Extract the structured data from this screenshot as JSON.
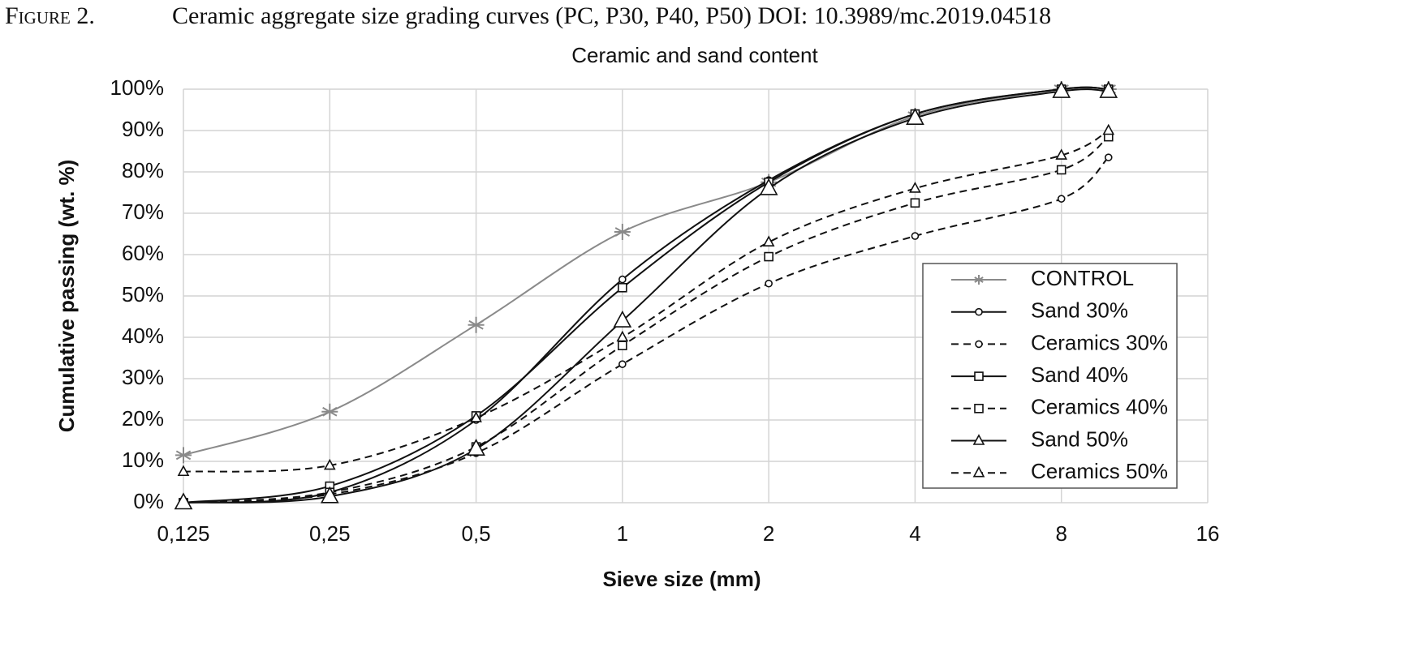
{
  "chart_data": {
    "type": "line",
    "figure_label": "Figure 2.",
    "caption": "Ceramic aggregate size grading curves (PC, P30, P40, P50) DOI: 10.3989/mc.2019.04518",
    "title": "Ceramic and sand content",
    "x_label": "Sieve size (mm)",
    "y_label": "Cumulative passing (wt. %)",
    "xscale": "log",
    "xlim": [
      0.125,
      16
    ],
    "xticks": [
      {
        "value": 0.125,
        "label": "0,125"
      },
      {
        "value": 0.25,
        "label": "0,25"
      },
      {
        "value": 0.5,
        "label": "0,5"
      },
      1,
      2,
      4,
      8,
      16
    ],
    "ylim": [
      0,
      100
    ],
    "yticks": [
      {
        "value": 0,
        "label": "0%"
      },
      {
        "value": 10,
        "label": "10%"
      },
      {
        "value": 20,
        "label": "20%"
      },
      {
        "value": 30,
        "label": "30%"
      },
      {
        "value": 40,
        "label": "40%"
      },
      {
        "value": 50,
        "label": "50%"
      },
      {
        "value": 60,
        "label": "60%"
      },
      {
        "value": 70,
        "label": "70%"
      },
      {
        "value": 80,
        "label": "80%"
      },
      {
        "value": 90,
        "label": "90%"
      },
      {
        "value": 100,
        "label": "100%"
      }
    ],
    "grid": true,
    "legend": "lower right",
    "x": [
      0.125,
      0.25,
      0.5,
      1,
      2,
      4,
      8,
      10
    ],
    "series": [
      {
        "name": "CONTROL",
        "color": "#8a8a8a",
        "dash": false,
        "marker": "asterisk",
        "marker_size": 10,
        "values": [
          11.5,
          22,
          43,
          65.5,
          77.5,
          93.5,
          100,
          100
        ]
      },
      {
        "name": "Sand 30%",
        "color": "#111111",
        "dash": false,
        "marker": "circle",
        "marker_size": 4,
        "values": [
          0,
          2.5,
          20,
          54,
          78,
          94,
          100,
          100
        ]
      },
      {
        "name": "Ceramics 30%",
        "color": "#111111",
        "dash": true,
        "marker": "circle",
        "marker_size": 4,
        "values": [
          0,
          2,
          12,
          33.5,
          53,
          64.5,
          73.5,
          83.5
        ]
      },
      {
        "name": "Sand 40%",
        "color": "#111111",
        "dash": false,
        "marker": "square",
        "marker_size": 5,
        "values": [
          0,
          4,
          21,
          52,
          77.5,
          94,
          100,
          100
        ]
      },
      {
        "name": "Ceramics 40%",
        "color": "#111111",
        "dash": true,
        "marker": "square",
        "marker_size": 5,
        "values": [
          0,
          2.5,
          13.5,
          38,
          59.5,
          72.5,
          80.5,
          88.5
        ]
      },
      {
        "name": "Sand 50%",
        "color": "#111111",
        "dash": false,
        "marker": "triangle",
        "marker_size": 10,
        "values": [
          0,
          1.5,
          13,
          44,
          76,
          93,
          99.5,
          99.5
        ]
      },
      {
        "name": "Ceramics 50%",
        "color": "#111111",
        "dash": true,
        "marker": "triangle",
        "marker_size": 6,
        "values": [
          7.5,
          9,
          20.5,
          40,
          63,
          76,
          84,
          90
        ]
      }
    ]
  }
}
